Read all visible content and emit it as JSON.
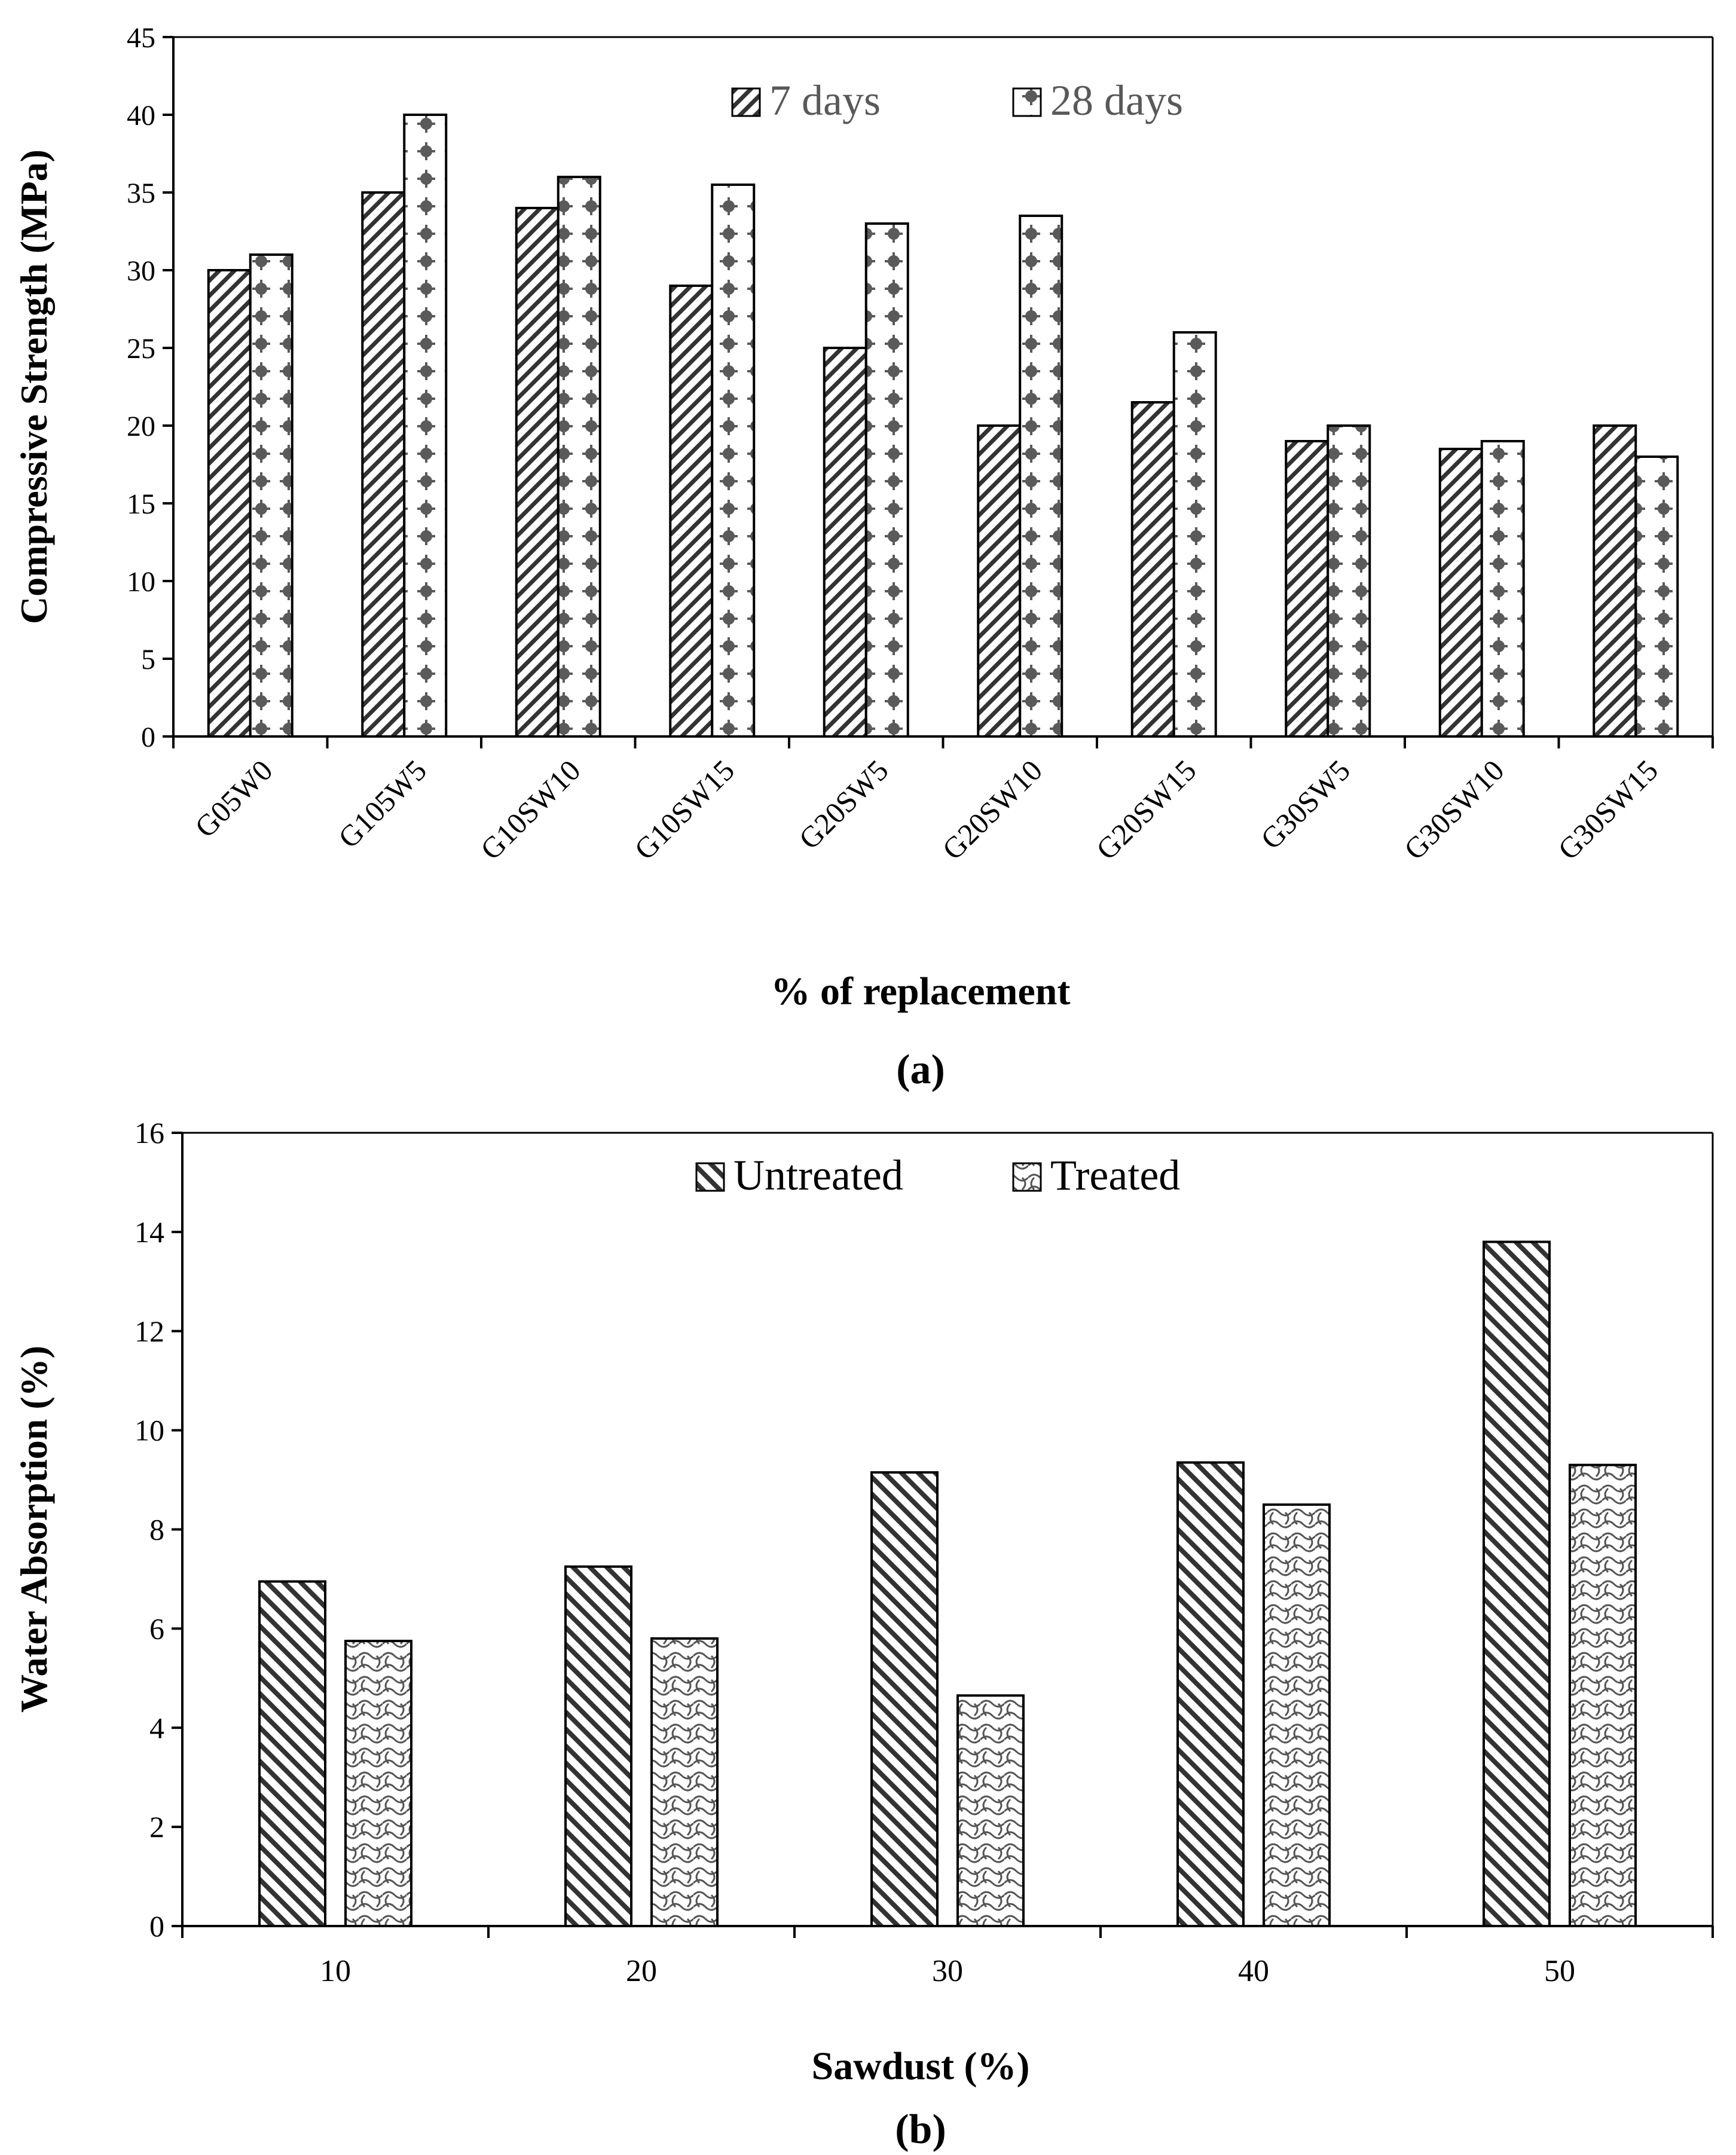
{
  "chart_data": [
    {
      "type": "bar",
      "panel_label": "(a)",
      "categories": [
        "G05W0",
        "G105W5",
        "G10SW10",
        "G10SW15",
        "G20SW5",
        "G20SW10",
        "G20SW15",
        "G30SW5",
        "G30SW10",
        "G30SW15"
      ],
      "series": [
        {
          "name": "7 days",
          "values": [
            30,
            35,
            34,
            29,
            25,
            20,
            21.5,
            19,
            18.5,
            20
          ]
        },
        {
          "name": "28 days",
          "values": [
            31,
            40,
            36,
            35.5,
            33,
            33.5,
            26,
            20,
            19,
            18
          ]
        }
      ],
      "xlabel": "% of replacement",
      "ylabel": "Compressive Strength (MPa)",
      "ylim": [
        0,
        45
      ],
      "yticks": [
        "0",
        "5",
        "10",
        "15",
        "20",
        "25",
        "30",
        "35",
        "40",
        "45"
      ],
      "legend_position": "top-center",
      "grid": false
    },
    {
      "type": "bar",
      "panel_label": "(b)",
      "categories": [
        "10",
        "20",
        "30",
        "40",
        "50"
      ],
      "series": [
        {
          "name": "Untreated",
          "values": [
            6.95,
            7.25,
            9.15,
            9.35,
            13.8
          ]
        },
        {
          "name": "Treated",
          "values": [
            5.75,
            5.8,
            4.65,
            8.5,
            9.3
          ]
        }
      ],
      "xlabel": "Sawdust (%)",
      "ylabel": "Water Absorption (%)",
      "ylim": [
        0,
        16
      ],
      "yticks": [
        "0",
        "2",
        "4",
        "6",
        "8",
        "10",
        "12",
        "14",
        "16"
      ],
      "legend_position": "top-center",
      "grid": false
    }
  ]
}
